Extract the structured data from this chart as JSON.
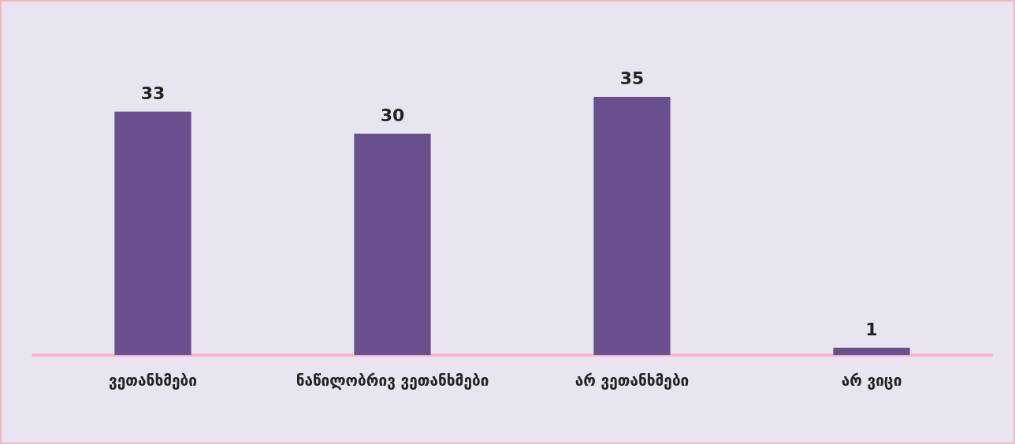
{
  "chart_data": {
    "type": "bar",
    "categories": [
      "ვეთანხმები",
      "ნაწილობრივ ვეთანხმები",
      "არ ვეთანხმები",
      "არ ვიცი"
    ],
    "values": [
      33,
      30,
      35,
      1
    ],
    "color": "#6a4f8f",
    "data_labels": true
  }
}
